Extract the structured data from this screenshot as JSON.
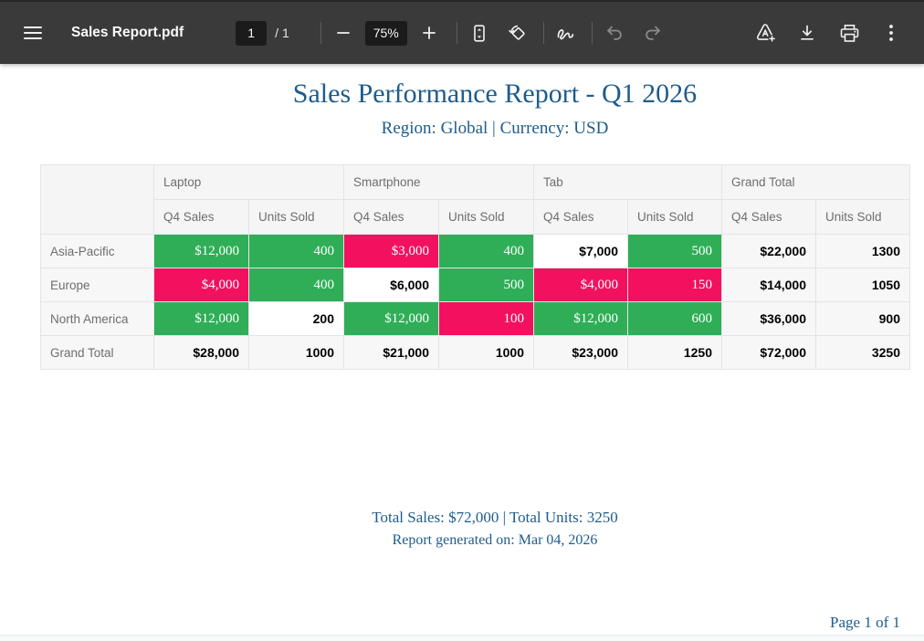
{
  "toolbar": {
    "title": "Sales Report.pdf",
    "page_current": "1",
    "page_total_label": "/  1",
    "zoom_level": "75%"
  },
  "document": {
    "title": "Sales Performance Report - Q1 2026",
    "subtitle": "Region: Global | Currency: USD",
    "summary_line": "Total Sales: $72,000 | Total Units: 3250",
    "generated_line": "Report generated on: Mar 04, 2026",
    "page_footer": "Page 1 of 1"
  },
  "table": {
    "column_groups": [
      "Laptop",
      "Smartphone",
      "Tab",
      "Grand Total"
    ],
    "sub_headers": [
      "Q4 Sales",
      "Units Sold",
      "Q4 Sales",
      "Units Sold",
      "Q4 Sales",
      "Units Sold",
      "Q4 Sales",
      "Units Sold"
    ],
    "rows": [
      {
        "label": "Asia-Pacific",
        "cells": [
          {
            "text": "$12,000",
            "style": "green"
          },
          {
            "text": "400",
            "style": "green"
          },
          {
            "text": "$3,000",
            "style": "pink"
          },
          {
            "text": "400",
            "style": "green"
          },
          {
            "text": "$7,000",
            "style": "plain"
          },
          {
            "text": "500",
            "style": "green"
          },
          {
            "text": "$22,000",
            "style": "total"
          },
          {
            "text": "1300",
            "style": "total"
          }
        ]
      },
      {
        "label": "Europe",
        "cells": [
          {
            "text": "$4,000",
            "style": "pink"
          },
          {
            "text": "400",
            "style": "green"
          },
          {
            "text": "$6,000",
            "style": "plain"
          },
          {
            "text": "500",
            "style": "green"
          },
          {
            "text": "$4,000",
            "style": "pink"
          },
          {
            "text": "150",
            "style": "pink"
          },
          {
            "text": "$14,000",
            "style": "total"
          },
          {
            "text": "1050",
            "style": "total"
          }
        ]
      },
      {
        "label": "North America",
        "cells": [
          {
            "text": "$12,000",
            "style": "green"
          },
          {
            "text": "200",
            "style": "plain"
          },
          {
            "text": "$12,000",
            "style": "green"
          },
          {
            "text": "100",
            "style": "pink"
          },
          {
            "text": "$12,000",
            "style": "green"
          },
          {
            "text": "600",
            "style": "green"
          },
          {
            "text": "$36,000",
            "style": "total"
          },
          {
            "text": "900",
            "style": "total"
          }
        ]
      },
      {
        "label": "Grand Total",
        "cells": [
          {
            "text": "$28,000",
            "style": "total"
          },
          {
            "text": "1000",
            "style": "total"
          },
          {
            "text": "$21,000",
            "style": "total"
          },
          {
            "text": "1000",
            "style": "total"
          },
          {
            "text": "$23,000",
            "style": "total"
          },
          {
            "text": "1250",
            "style": "total"
          },
          {
            "text": "$72,000",
            "style": "total"
          },
          {
            "text": "3250",
            "style": "total"
          }
        ]
      }
    ]
  },
  "colors": {
    "positive_green": "#2FAE57",
    "negative_pink": "#F2105F",
    "accent_blue": "#1E5C8C"
  }
}
